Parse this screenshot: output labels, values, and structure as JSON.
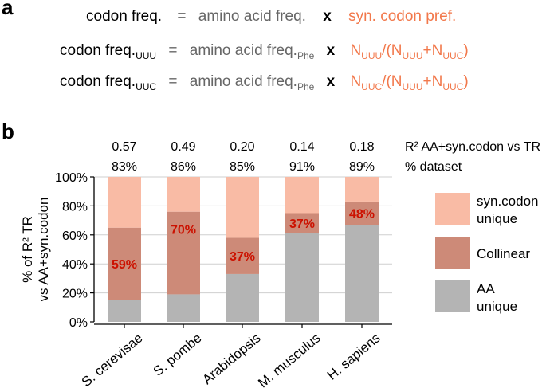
{
  "panel_a": {
    "label": "a",
    "rows": [
      {
        "lhs": "codon freq.",
        "lhs_sub": "",
        "eq": "=",
        "aa": "amino acid freq.",
        "aa_sub": "",
        "times": "x",
        "rhs_parts": [
          "syn. codon pref."
        ]
      },
      {
        "lhs": "codon freq.",
        "lhs_sub": "UUU",
        "eq": "=",
        "aa": "amino acid freq.",
        "aa_sub": "Phe",
        "times": "x",
        "rhs_parts": [
          "N",
          "UUU",
          "/(N",
          "UUU",
          "+N",
          "UUC",
          ")"
        ]
      },
      {
        "lhs": "codon freq.",
        "lhs_sub": "UUC",
        "eq": "=",
        "aa": "amino acid freq.",
        "aa_sub": "Phe",
        "times": "x",
        "rhs_parts": [
          "N",
          "UUC",
          "/(N",
          "UUU",
          "+N",
          "UUC",
          ")"
        ]
      }
    ]
  },
  "panel_b": {
    "label": "b"
  },
  "colors": {
    "syn_codon_unique": "#f9bba5",
    "collinear": "#cd8a78",
    "aa_unique": "#b4b4b4",
    "pct_label": "#cc1100",
    "grid": "#cfcfcf"
  },
  "chart_data": {
    "type": "bar",
    "stacked": true,
    "categories": [
      "S. cerevisae",
      "S. pombe",
      "Arabidopsis",
      "M. musculus",
      "H. sapiens"
    ],
    "series": [
      {
        "name": "AA\nunique",
        "legend_lines": [
          "AA",
          "unique"
        ],
        "values": [
          15,
          19,
          33,
          61,
          67
        ]
      },
      {
        "name": "Collinear",
        "legend_lines": [
          "Collinear"
        ],
        "values": [
          50,
          57,
          25,
          14,
          16
        ]
      },
      {
        "name": "syn.codon\nunique",
        "legend_lines": [
          "syn.codon",
          "unique"
        ],
        "values": [
          35,
          24,
          42,
          25,
          17
        ]
      }
    ],
    "r2_values": [
      "0.57",
      "0.49",
      "0.20",
      "0.14",
      "0.18"
    ],
    "dataset_pct": [
      "83%",
      "86%",
      "85%",
      "91%",
      "89%"
    ],
    "r2_row_label": "R² AA+syn.codon vs TR",
    "dataset_row_label": "% dataset",
    "bar_labels": [
      "59%",
      "70%",
      "37%",
      "37%",
      "48%"
    ],
    "ylabel_lines": [
      "% of R² TR",
      "vs AA+syn.codon"
    ],
    "yticks": [
      0,
      20,
      40,
      60,
      80,
      100
    ],
    "ytick_labels": [
      "0%",
      "20%",
      "40%",
      "60%",
      "80%",
      "100%"
    ],
    "ylim": [
      0,
      100
    ],
    "grid": true,
    "legend_position": "right"
  }
}
